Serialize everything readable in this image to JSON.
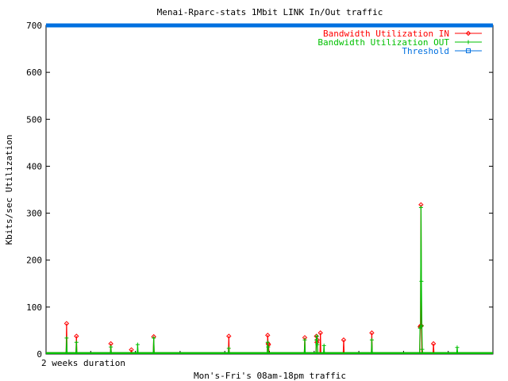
{
  "chart_data": {
    "type": "line",
    "title": "Menai-Rparc-stats 1Mbit LINK In/Out traffic",
    "xlabel": "Mon's-Fri's 08am-18pm traffic",
    "ylabel": "Kbits/sec Utilization",
    "x_annotation": "2 weeks duration",
    "xlim": [
      0,
      100
    ],
    "ylim": [
      0,
      700
    ],
    "yticks": [
      0,
      100,
      200,
      300,
      400,
      500,
      600,
      700
    ],
    "grid": false,
    "legend_position": "top-right",
    "series": [
      {
        "name": "Bandwidth Utilization IN",
        "color": "#ff0000",
        "marker": "diamond",
        "x": [
          0,
          4.5,
          4.6,
          4.7,
          6.7,
          6.8,
          6.9,
          14.4,
          14.5,
          14.6,
          19.0,
          19.1,
          19.2,
          24.0,
          24.1,
          24.2,
          40.8,
          40.9,
          41.0,
          49.5,
          49.6,
          49.7,
          49.8,
          49.9,
          57.8,
          57.9,
          58.0,
          60.4,
          60.5,
          60.6,
          60.7,
          60.8,
          61.3,
          61.4,
          61.5,
          66.5,
          66.6,
          66.7,
          72.8,
          72.9,
          73.0,
          83.6,
          83.7,
          83.8,
          83.9,
          84.0,
          84.1,
          86.6,
          86.7,
          86.8,
          100
        ],
        "y": [
          2,
          2,
          65,
          2,
          2,
          38,
          2,
          2,
          22,
          2,
          2,
          9,
          2,
          2,
          37,
          2,
          2,
          38,
          2,
          2,
          40,
          22,
          20,
          2,
          2,
          35,
          2,
          2,
          38,
          25,
          30,
          2,
          2,
          45,
          2,
          2,
          30,
          2,
          2,
          45,
          2,
          2,
          58,
          60,
          318,
          60,
          2,
          2,
          22,
          2,
          2
        ]
      },
      {
        "name": "Bandwidth Utilization OUT",
        "color": "#00c000",
        "marker": "plus",
        "x": [
          0,
          4.5,
          4.6,
          4.7,
          6.7,
          6.8,
          6.9,
          14.4,
          14.5,
          14.6,
          20.4,
          20.5,
          20.6,
          24.0,
          24.1,
          24.2,
          40.8,
          40.9,
          41.0,
          49.5,
          49.6,
          49.7,
          49.8,
          57.8,
          57.9,
          58.0,
          60.4,
          60.5,
          60.6,
          60.7,
          60.8,
          62.1,
          62.2,
          62.3,
          72.8,
          72.9,
          73.0,
          83.6,
          83.7,
          83.8,
          83.9,
          84.0,
          84.1,
          84.2,
          84.3,
          91.9,
          92.0,
          92.1,
          100
        ],
        "y": [
          2,
          2,
          34,
          2,
          2,
          25,
          2,
          2,
          15,
          2,
          2,
          20,
          2,
          2,
          34,
          2,
          2,
          12,
          2,
          2,
          25,
          15,
          2,
          2,
          30,
          2,
          2,
          30,
          38,
          20,
          2,
          2,
          18,
          2,
          2,
          30,
          2,
          2,
          55,
          58,
          312,
          155,
          60,
          10,
          2,
          2,
          14,
          2,
          2
        ]
      },
      {
        "name": "Threshold",
        "color": "#0070e0",
        "marker": "square",
        "x": [
          0,
          100
        ],
        "y": [
          700,
          700
        ]
      }
    ]
  }
}
